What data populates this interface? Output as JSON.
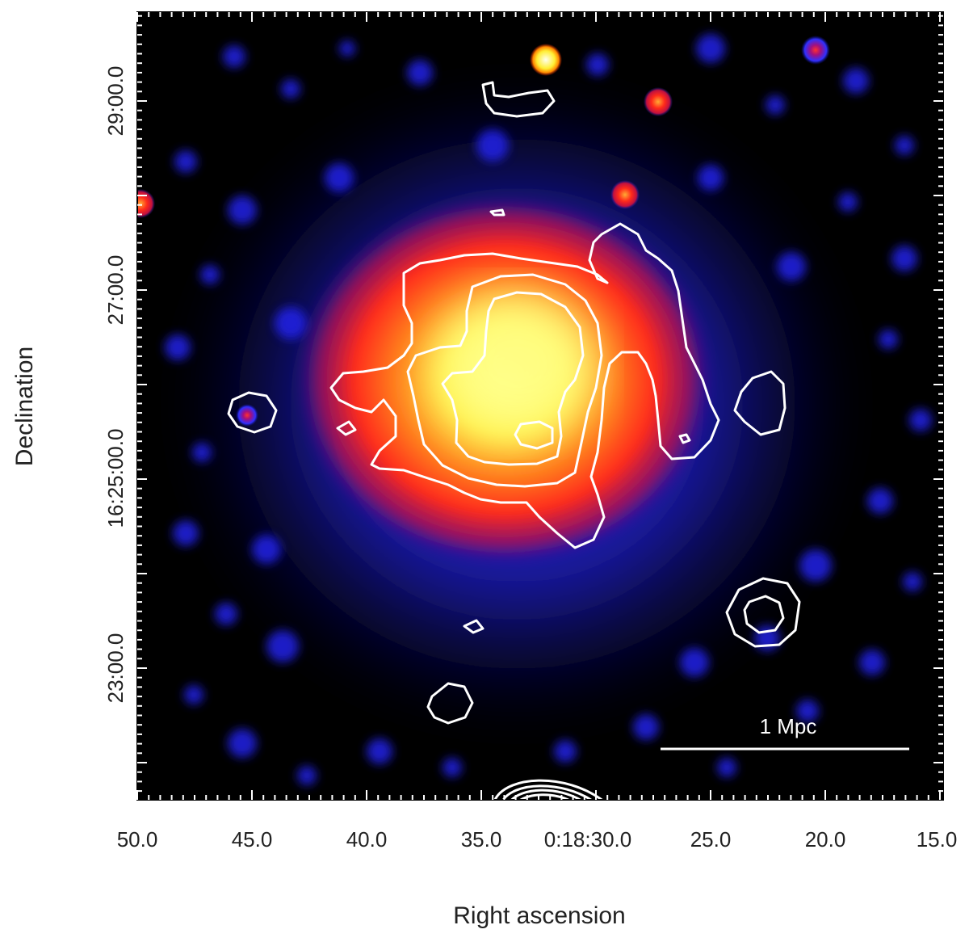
{
  "axes": {
    "xlabel": "Right ascension",
    "ylabel": "Declination",
    "x_ticks": [
      "50.0",
      "45.0",
      "40.0",
      "35.0",
      "0:18:30.0",
      "25.0",
      "20.0",
      "15.0"
    ],
    "y_ticks": [
      "29:00.0",
      "27:00.0",
      "16:25:00.0",
      "23:00.0"
    ]
  },
  "scale_bar": {
    "label": "1 Mpc"
  },
  "colors": {
    "background": "#000000",
    "diffuse_emission": "#1a1aff",
    "core_red": "#ff2a1a",
    "core_yellow": "#ffff66",
    "contours": "#ffffff"
  }
}
